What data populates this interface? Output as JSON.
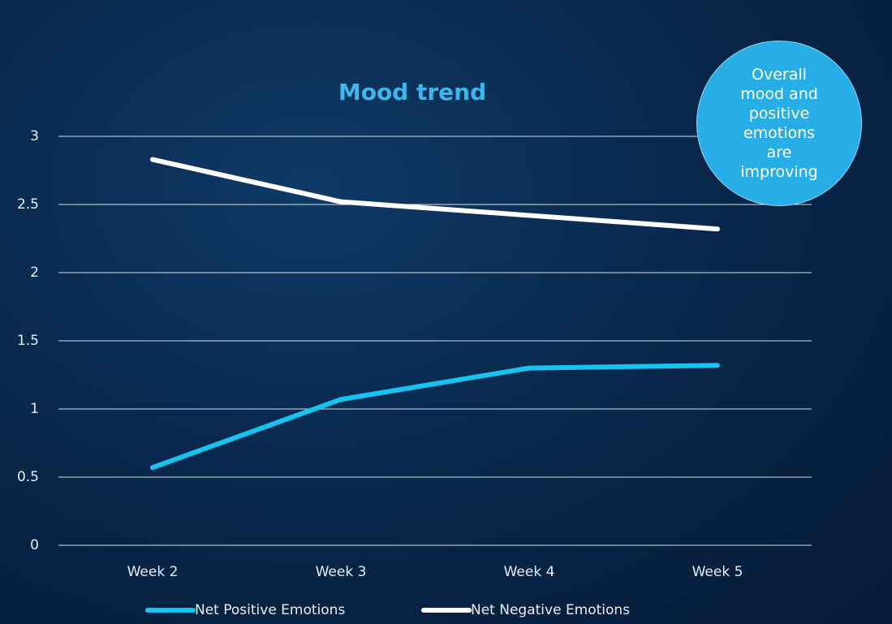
{
  "chart_data": {
    "type": "line",
    "title": "Mood trend",
    "annotation": "Overall mood and positive emotions are improving",
    "categories": [
      "Week 2",
      "Week 3",
      "Week 4",
      "Week 5"
    ],
    "series": [
      {
        "name": "Net Positive Emotions",
        "color": "#17c3f0",
        "values": [
          0.57,
          1.07,
          1.3,
          1.32
        ]
      },
      {
        "name": "Net Negative Emotions",
        "color": "#ffffff",
        "values": [
          2.83,
          2.52,
          2.42,
          2.32
        ]
      }
    ],
    "ylim": [
      0,
      3
    ],
    "yticks": [
      0,
      0.5,
      1,
      1.5,
      2,
      2.5,
      3
    ],
    "grid": true,
    "legend": "bottom"
  }
}
